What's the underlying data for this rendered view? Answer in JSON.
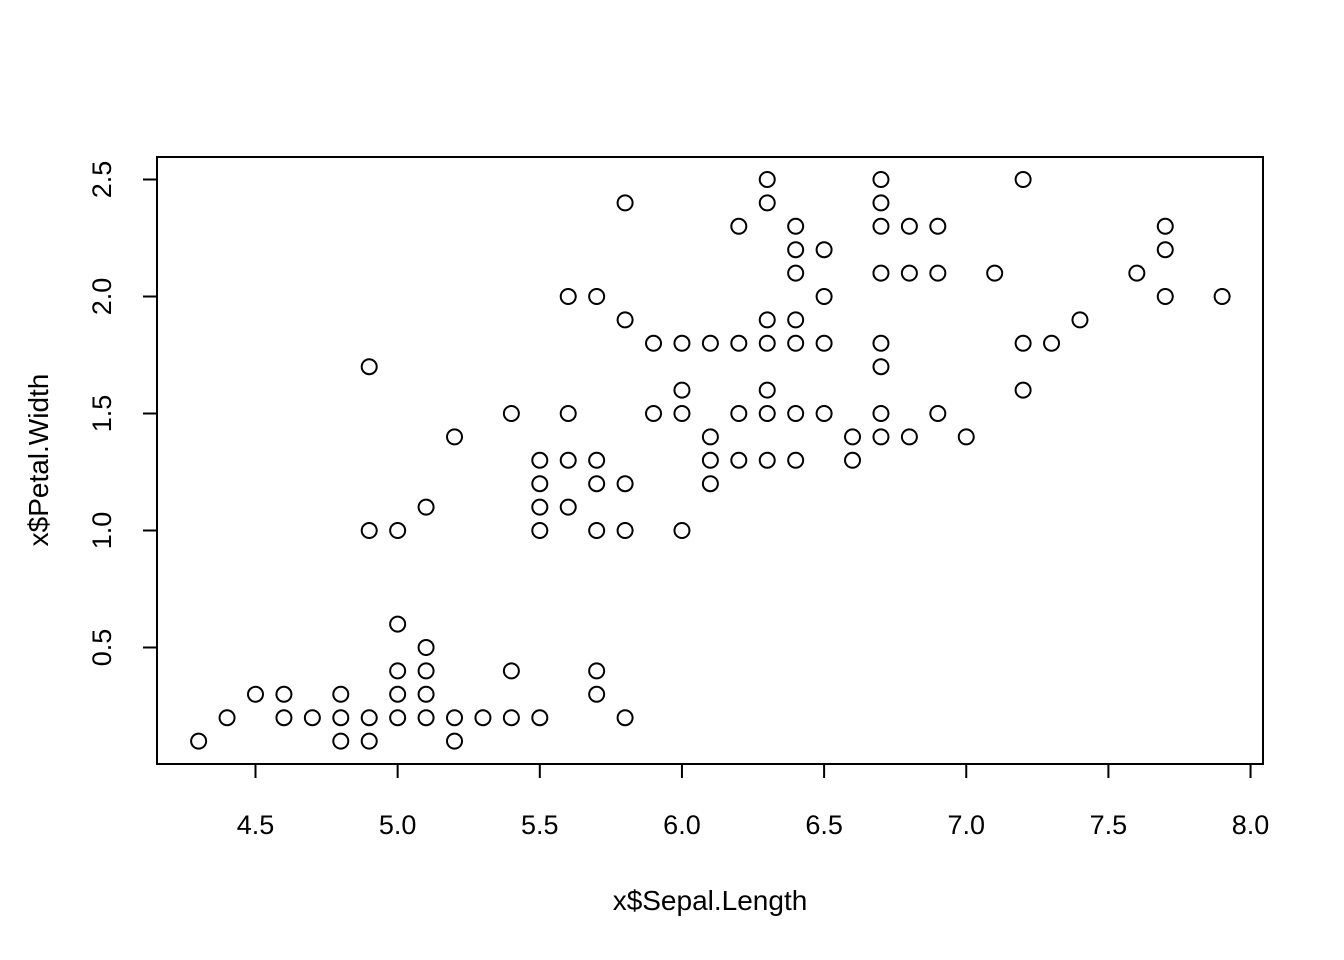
{
  "chart_data": {
    "type": "scatter",
    "title": "",
    "xlabel": "x$Sepal.Length",
    "ylabel": "x$Petal.Width",
    "xlim": [
      4.3,
      7.9
    ],
    "ylim": [
      0.1,
      2.5
    ],
    "xticks": [
      "4.5",
      "5.0",
      "5.5",
      "6.0",
      "6.5",
      "7.0",
      "7.5",
      "8.0"
    ],
    "yticks": [
      "0.5",
      "1.0",
      "1.5",
      "2.0",
      "2.5"
    ],
    "grid": false,
    "legend": "none",
    "marker": "open-circle",
    "colors": {
      "points": "#000000",
      "axes": "#000000",
      "background": "#ffffff"
    },
    "points": [
      [
        4.3,
        0.1
      ],
      [
        4.4,
        0.2
      ],
      [
        4.5,
        0.3
      ],
      [
        4.6,
        0.2
      ],
      [
        4.6,
        0.3
      ],
      [
        4.7,
        0.2
      ],
      [
        4.8,
        0.1
      ],
      [
        4.8,
        0.2
      ],
      [
        4.8,
        0.3
      ],
      [
        4.9,
        0.1
      ],
      [
        4.9,
        0.2
      ],
      [
        4.9,
        1.0
      ],
      [
        4.9,
        1.7
      ],
      [
        5.0,
        0.2
      ],
      [
        5.0,
        0.3
      ],
      [
        5.0,
        0.4
      ],
      [
        5.0,
        0.6
      ],
      [
        5.0,
        1.0
      ],
      [
        5.1,
        0.2
      ],
      [
        5.1,
        0.3
      ],
      [
        5.1,
        0.4
      ],
      [
        5.1,
        0.5
      ],
      [
        5.1,
        1.1
      ],
      [
        5.2,
        0.1
      ],
      [
        5.2,
        0.2
      ],
      [
        5.2,
        1.4
      ],
      [
        5.3,
        0.2
      ],
      [
        5.4,
        0.2
      ],
      [
        5.4,
        0.4
      ],
      [
        5.4,
        1.5
      ],
      [
        5.5,
        0.2
      ],
      [
        5.5,
        1.0
      ],
      [
        5.5,
        1.1
      ],
      [
        5.5,
        1.2
      ],
      [
        5.5,
        1.3
      ],
      [
        5.6,
        1.1
      ],
      [
        5.6,
        1.3
      ],
      [
        5.6,
        1.5
      ],
      [
        5.6,
        2.0
      ],
      [
        5.7,
        0.3
      ],
      [
        5.7,
        0.4
      ],
      [
        5.7,
        1.0
      ],
      [
        5.7,
        1.2
      ],
      [
        5.7,
        1.3
      ],
      [
        5.7,
        2.0
      ],
      [
        5.8,
        0.2
      ],
      [
        5.8,
        1.0
      ],
      [
        5.8,
        1.2
      ],
      [
        5.8,
        1.9
      ],
      [
        5.8,
        2.4
      ],
      [
        5.9,
        1.5
      ],
      [
        5.9,
        1.8
      ],
      [
        6.0,
        1.0
      ],
      [
        6.0,
        1.5
      ],
      [
        6.0,
        1.6
      ],
      [
        6.0,
        1.8
      ],
      [
        6.1,
        1.2
      ],
      [
        6.1,
        1.3
      ],
      [
        6.1,
        1.4
      ],
      [
        6.1,
        1.8
      ],
      [
        6.2,
        1.3
      ],
      [
        6.2,
        1.5
      ],
      [
        6.2,
        1.8
      ],
      [
        6.2,
        2.3
      ],
      [
        6.3,
        1.3
      ],
      [
        6.3,
        1.5
      ],
      [
        6.3,
        1.6
      ],
      [
        6.3,
        1.8
      ],
      [
        6.3,
        1.9
      ],
      [
        6.3,
        2.4
      ],
      [
        6.3,
        2.5
      ],
      [
        6.4,
        1.3
      ],
      [
        6.4,
        1.5
      ],
      [
        6.4,
        1.8
      ],
      [
        6.4,
        1.9
      ],
      [
        6.4,
        2.1
      ],
      [
        6.4,
        2.2
      ],
      [
        6.4,
        2.3
      ],
      [
        6.5,
        1.5
      ],
      [
        6.5,
        1.8
      ],
      [
        6.5,
        2.0
      ],
      [
        6.5,
        2.2
      ],
      [
        6.6,
        1.3
      ],
      [
        6.6,
        1.4
      ],
      [
        6.7,
        1.4
      ],
      [
        6.7,
        1.5
      ],
      [
        6.7,
        1.7
      ],
      [
        6.7,
        1.8
      ],
      [
        6.7,
        2.1
      ],
      [
        6.7,
        2.3
      ],
      [
        6.7,
        2.4
      ],
      [
        6.7,
        2.5
      ],
      [
        6.8,
        1.4
      ],
      [
        6.8,
        2.1
      ],
      [
        6.8,
        2.3
      ],
      [
        6.9,
        1.5
      ],
      [
        6.9,
        2.1
      ],
      [
        6.9,
        2.3
      ],
      [
        7.0,
        1.4
      ],
      [
        7.1,
        2.1
      ],
      [
        7.2,
        1.6
      ],
      [
        7.2,
        1.8
      ],
      [
        7.2,
        2.5
      ],
      [
        7.3,
        1.8
      ],
      [
        7.4,
        1.9
      ],
      [
        7.6,
        2.1
      ],
      [
        7.7,
        2.0
      ],
      [
        7.7,
        2.2
      ],
      [
        7.7,
        2.3
      ],
      [
        7.9,
        2.0
      ]
    ]
  }
}
